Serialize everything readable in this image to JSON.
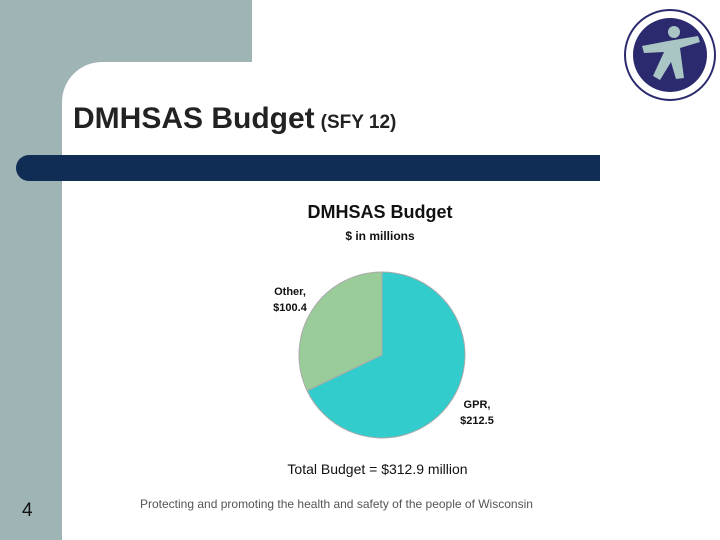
{
  "slide": {
    "title": "DMHSAS Budget",
    "title_suffix": "(SFY 12)",
    "page_number": "4",
    "footer": "Protecting and promoting the health and safety of the people of Wisconsin",
    "logo_icon": "wisconsin-dhs-seal-icon"
  },
  "chart_data": {
    "type": "pie",
    "title": "DMHSAS Budget",
    "subtitle": "$ in millions",
    "slices": [
      {
        "label": "GPR,",
        "value_label": "$212.5",
        "value": 212.5,
        "color": "#33cccc"
      },
      {
        "label": "Other,",
        "value_label": "$100.4",
        "value": 100.4,
        "color": "#99cc99"
      }
    ],
    "annotation": "Total Budget = $312.9 million"
  },
  "colors": {
    "accent_bar": "#0f2d55",
    "side_panel": "#9fb4b4",
    "logo_circle": "#2b2a6e"
  }
}
